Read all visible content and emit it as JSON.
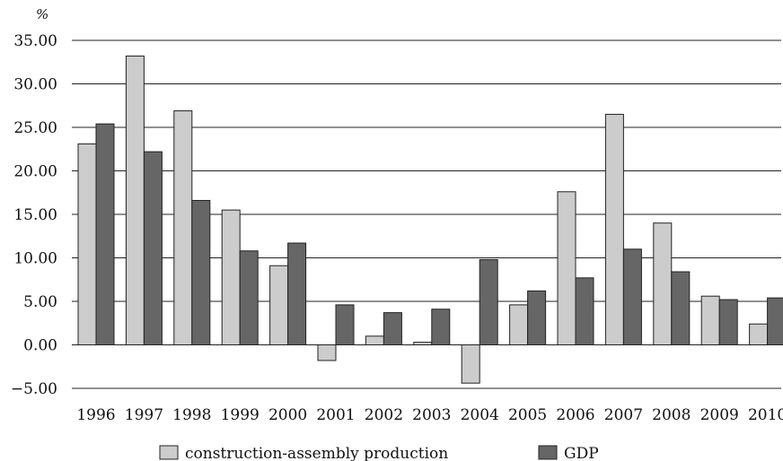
{
  "chart_data": {
    "type": "bar",
    "ylabel": "%",
    "ylim": [
      -5,
      35
    ],
    "ytick_step": 5,
    "grid": true,
    "legend_position": "bottom",
    "categories": [
      "1996",
      "1997",
      "1998",
      "1999",
      "2000",
      "2001",
      "2002",
      "2003",
      "2004",
      "2005",
      "2006",
      "2007",
      "2008",
      "2009",
      "2010"
    ],
    "series": [
      {
        "name": "construction-assembly production",
        "color": "#cccccc",
        "values": [
          23.1,
          33.2,
          26.9,
          15.5,
          9.1,
          -1.8,
          1.0,
          0.3,
          -4.4,
          4.6,
          17.6,
          26.5,
          14.0,
          5.6,
          2.4
        ]
      },
      {
        "name": "GDP",
        "color": "#666666",
        "values": [
          25.4,
          22.2,
          16.6,
          10.8,
          11.7,
          4.6,
          3.7,
          4.1,
          9.8,
          6.2,
          7.7,
          11.0,
          8.4,
          5.2,
          5.4
        ]
      }
    ]
  }
}
